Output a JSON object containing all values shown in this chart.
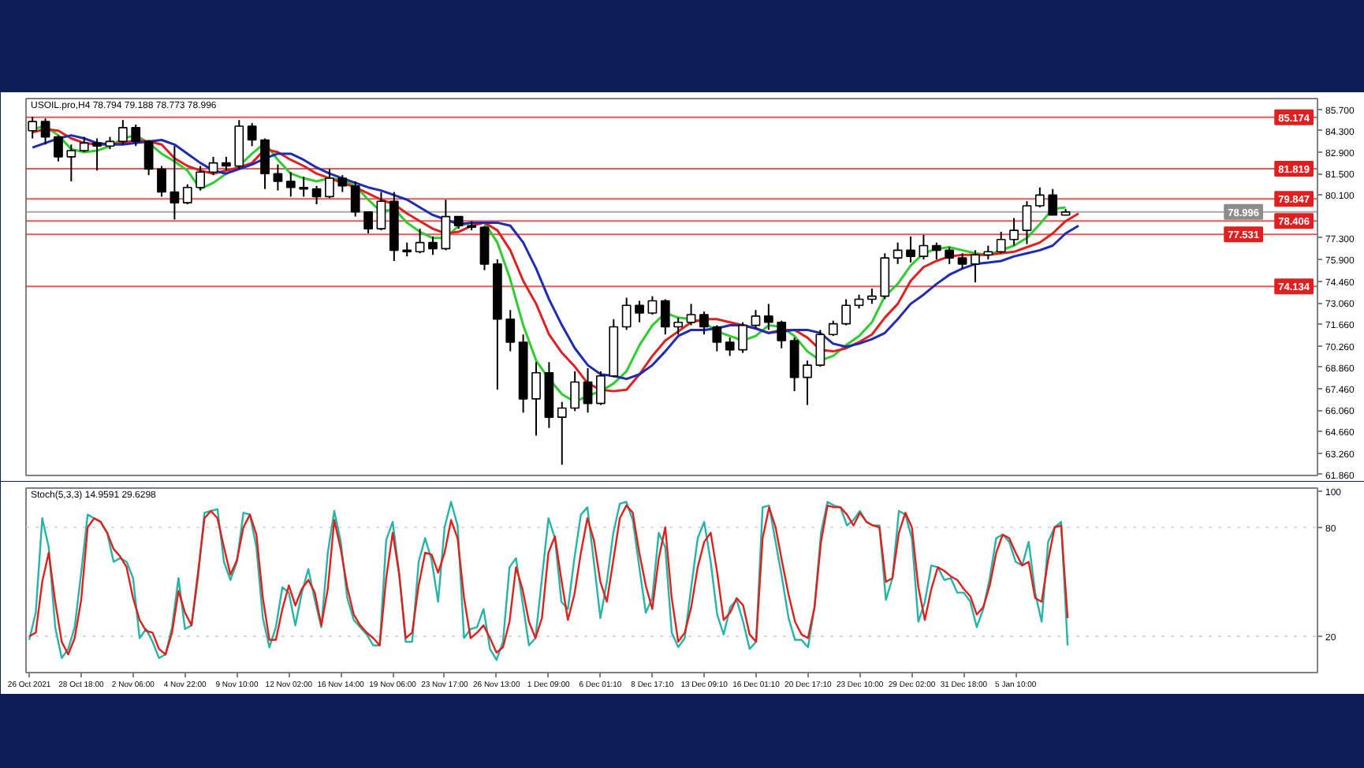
{
  "chart_data": [
    {
      "type": "candlestick",
      "title": "USOIL.pro,H4 78.794 79.188 78.773 78.996",
      "categories": [
        null,
        null,
        null,
        null,
        null,
        null,
        null,
        null,
        null,
        null,
        null,
        null,
        null,
        null,
        null,
        null,
        null,
        null,
        null,
        null,
        null,
        null,
        null,
        null,
        null,
        null,
        null,
        null,
        null,
        null,
        null,
        null,
        null,
        null,
        null,
        null,
        null,
        null,
        null,
        null,
        null,
        null,
        null,
        null,
        null,
        null,
        null,
        null,
        null,
        null,
        null,
        null,
        null,
        null,
        null,
        null,
        null,
        null,
        null,
        null,
        null,
        null,
        null,
        null,
        null,
        null,
        null,
        null,
        null,
        null,
        null,
        null,
        null,
        null,
        null,
        null,
        null,
        null,
        null,
        null,
        null,
        null,
        null,
        null,
        null,
        null,
        null,
        null,
        null,
        null,
        null,
        null,
        null,
        null,
        null,
        null,
        null,
        null,
        null,
        null
      ],
      "ohlc": [
        [
          84.3,
          85.2,
          83.8,
          84.9
        ],
        [
          84.9,
          85.1,
          83.4,
          83.9
        ],
        [
          83.9,
          84.0,
          82.3,
          82.6
        ],
        [
          82.6,
          83.4,
          81.0,
          83.0
        ],
        [
          83.0,
          83.9,
          82.9,
          83.5
        ],
        [
          83.5,
          83.8,
          81.7,
          83.3
        ],
        [
          83.3,
          83.9,
          83.1,
          83.6
        ],
        [
          83.6,
          85.0,
          83.4,
          84.5
        ],
        [
          84.5,
          84.7,
          83.3,
          83.6
        ],
        [
          83.6,
          83.7,
          81.4,
          81.8
        ],
        [
          81.8,
          82.0,
          80.0,
          80.3
        ],
        [
          80.3,
          83.3,
          78.5,
          79.6
        ],
        [
          79.6,
          80.8,
          79.5,
          80.6
        ],
        [
          80.6,
          82.0,
          80.4,
          81.6
        ],
        [
          81.6,
          82.6,
          81.4,
          82.2
        ],
        [
          82.2,
          82.6,
          81.7,
          82.0
        ],
        [
          82.0,
          85.0,
          81.8,
          84.6
        ],
        [
          84.6,
          84.8,
          83.3,
          83.7
        ],
        [
          83.7,
          83.8,
          80.5,
          81.5
        ],
        [
          81.5,
          82.1,
          80.4,
          81.0
        ],
        [
          81.0,
          81.6,
          80.0,
          80.6
        ],
        [
          80.6,
          81.3,
          80.0,
          80.5
        ],
        [
          80.5,
          80.7,
          79.5,
          80.0
        ],
        [
          80.0,
          81.8,
          79.9,
          81.2
        ],
        [
          81.2,
          81.4,
          80.3,
          80.7
        ],
        [
          80.7,
          81.0,
          78.7,
          79.0
        ],
        [
          79.0,
          79.0,
          77.6,
          77.9
        ],
        [
          77.9,
          80.3,
          77.8,
          79.7
        ],
        [
          79.7,
          80.3,
          75.8,
          76.5
        ],
        [
          76.5,
          77.0,
          76.1,
          76.4
        ],
        [
          76.4,
          77.9,
          76.3,
          77.0
        ],
        [
          77.0,
          77.4,
          76.2,
          76.6
        ],
        [
          76.6,
          79.8,
          76.5,
          78.7
        ],
        [
          78.7,
          78.7,
          77.9,
          78.1
        ],
        [
          78.1,
          78.4,
          77.8,
          78.0
        ],
        [
          78.0,
          78.1,
          75.2,
          75.6
        ],
        [
          75.6,
          75.9,
          67.4,
          72.0
        ],
        [
          72.0,
          72.6,
          69.9,
          70.5
        ],
        [
          70.5,
          71.0,
          65.9,
          66.8
        ],
        [
          66.8,
          69.2,
          64.4,
          68.5
        ],
        [
          68.5,
          69.2,
          64.9,
          65.6
        ],
        [
          65.6,
          66.6,
          62.5,
          66.2
        ],
        [
          66.2,
          68.6,
          66.0,
          67.9
        ],
        [
          67.9,
          68.8,
          65.9,
          66.5
        ],
        [
          66.5,
          68.6,
          66.4,
          68.3
        ],
        [
          68.3,
          72.0,
          68.2,
          71.5
        ],
        [
          71.5,
          73.4,
          71.3,
          72.9
        ],
        [
          72.9,
          73.2,
          71.8,
          72.4
        ],
        [
          72.4,
          73.5,
          72.3,
          73.2
        ],
        [
          73.2,
          73.3,
          71.0,
          71.5
        ],
        [
          71.5,
          72.1,
          71.0,
          71.8
        ],
        [
          71.8,
          73.0,
          71.6,
          72.3
        ],
        [
          72.3,
          72.5,
          71.0,
          71.5
        ],
        [
          71.5,
          71.6,
          69.9,
          70.5
        ],
        [
          70.5,
          70.8,
          69.6,
          70.0
        ],
        [
          70.0,
          71.8,
          69.8,
          71.6
        ],
        [
          71.6,
          72.6,
          71.4,
          72.2
        ],
        [
          72.2,
          73.0,
          71.3,
          71.8
        ],
        [
          71.8,
          71.9,
          70.1,
          70.6
        ],
        [
          70.6,
          70.8,
          67.3,
          68.2
        ],
        [
          68.2,
          69.3,
          66.4,
          69.0
        ],
        [
          69.0,
          71.3,
          68.9,
          71.0
        ],
        [
          71.0,
          71.9,
          70.9,
          71.7
        ],
        [
          71.7,
          73.3,
          71.6,
          72.9
        ],
        [
          72.9,
          73.6,
          72.7,
          73.3
        ],
        [
          73.3,
          74.0,
          73.0,
          73.5
        ],
        [
          73.5,
          76.3,
          73.3,
          76.0
        ],
        [
          76.0,
          77.0,
          75.6,
          76.5
        ],
        [
          76.5,
          77.4,
          75.7,
          76.1
        ],
        [
          76.1,
          77.5,
          75.9,
          76.8
        ],
        [
          76.8,
          77.0,
          75.9,
          76.5
        ],
        [
          76.5,
          76.7,
          75.6,
          76.0
        ],
        [
          76.0,
          76.3,
          75.3,
          75.6
        ],
        [
          75.6,
          76.5,
          74.4,
          76.2
        ],
        [
          76.2,
          76.8,
          75.9,
          76.4
        ],
        [
          76.4,
          77.7,
          76.3,
          77.2
        ],
        [
          77.2,
          78.6,
          76.8,
          77.8
        ],
        [
          77.8,
          79.7,
          76.9,
          79.4
        ],
        [
          79.4,
          80.6,
          79.3,
          80.1
        ],
        [
          80.1,
          80.5,
          78.8,
          78.8
        ],
        [
          78.794,
          79.188,
          78.773,
          78.996
        ],
        null,
        null,
        null,
        null,
        null,
        null,
        null,
        null,
        null,
        null,
        null,
        null,
        null,
        null,
        null,
        null,
        null,
        null,
        null
      ],
      "color": "#000000",
      "colors": [
        "#ffffff",
        "#000000",
        "#000000",
        "#ffffff",
        "#ffffff",
        "#000000",
        "#ffffff",
        "#ffffff",
        "#000000",
        "#000000",
        "#000000",
        "#000000",
        "#ffffff",
        "#ffffff",
        "#ffffff",
        "#000000",
        "#ffffff",
        "#000000",
        "#000000",
        "#000000",
        "#000000",
        "#000000",
        "#000000",
        "#ffffff",
        "#000000",
        "#000000",
        "#000000",
        "#ffffff",
        "#000000",
        "#000000",
        "#ffffff",
        "#000000",
        "#ffffff",
        "#000000",
        "#000000",
        "#000000",
        "#000000",
        "#000000",
        "#000000",
        "#ffffff",
        "#000000",
        "#ffffff",
        "#ffffff",
        "#000000",
        "#ffffff",
        "#ffffff",
        "#ffffff",
        "#000000",
        "#ffffff",
        "#000000",
        "#ffffff",
        "#ffffff",
        "#000000",
        "#000000",
        "#000000",
        "#ffffff",
        "#ffffff",
        "#000000",
        "#000000",
        "#000000",
        "#ffffff",
        "#ffffff",
        "#ffffff",
        "#ffffff",
        "#ffffff",
        "#ffffff",
        "#ffffff",
        "#ffffff",
        "#000000",
        "#ffffff",
        "#000000",
        "#000000",
        "#000000",
        "#ffffff",
        "#ffffff",
        "#ffffff",
        "#ffffff",
        "#ffffff",
        "#ffffff",
        "#000000",
        "#ffffff",
        null,
        null,
        null,
        null,
        null,
        null,
        null,
        null,
        null,
        null,
        null,
        null,
        null,
        null,
        null,
        null,
        null,
        null,
        null
      ],
      "series": [
        {
          "type": "line",
          "color": "#2ecc2e",
          "values": [
            84.4,
            84.6,
            84.0,
            83.1,
            82.9,
            83.0,
            83.3,
            83.8,
            84.0,
            83.5,
            82.8,
            82.3,
            81.7,
            80.5,
            80.9,
            81.5,
            82.0,
            82.8,
            83.5,
            82.4,
            81.5,
            81.2,
            81.0,
            81.2,
            81.1,
            80.7,
            79.8,
            79.0,
            79.2,
            78.3,
            77.7,
            77.3,
            77.3,
            78.1,
            78.3,
            78.3,
            77.0,
            74.6,
            71.6,
            69.3,
            68.1,
            67.1,
            66.6,
            67.0,
            67.3,
            67.8,
            68.6,
            70.3,
            71.6,
            72.4,
            72.1,
            72.0,
            71.8,
            71.2,
            70.9,
            70.6,
            70.9,
            71.6,
            71.5,
            70.9,
            69.9,
            69.3,
            69.6,
            70.3,
            70.9,
            71.8,
            73.5,
            74.3,
            75.5,
            76.3,
            76.6,
            76.7,
            76.5,
            76.3,
            76.2,
            76.5,
            76.8,
            77.3,
            78.2,
            79.2,
            79.3,
            null,
            null,
            null,
            null,
            null,
            null,
            null,
            null,
            null,
            null,
            null,
            null,
            null,
            null,
            null,
            null,
            null,
            null,
            null
          ]
        },
        {
          "type": "line",
          "color": "#e02020",
          "values": [
            84.2,
            84.4,
            84.3,
            83.8,
            83.5,
            83.4,
            83.4,
            83.5,
            83.7,
            83.6,
            83.4,
            82.5,
            82.0,
            81.7,
            81.5,
            81.7,
            81.9,
            82.2,
            83.1,
            82.9,
            82.4,
            82.0,
            81.5,
            81.2,
            80.9,
            80.6,
            80.2,
            79.8,
            79.5,
            78.9,
            78.4,
            77.9,
            77.6,
            77.7,
            78.1,
            78.3,
            77.8,
            76.5,
            74.5,
            73.0,
            71.0,
            69.8,
            68.9,
            67.8,
            67.4,
            67.3,
            67.4,
            68.4,
            69.6,
            70.6,
            71.2,
            71.8,
            72.0,
            72.0,
            71.8,
            71.6,
            71.4,
            71.1,
            71.3,
            71.3,
            70.8,
            70.0,
            69.9,
            70.1,
            70.5,
            71.0,
            72.1,
            73.0,
            74.5,
            75.4,
            75.8,
            76.1,
            76.2,
            76.2,
            76.2,
            76.3,
            76.4,
            76.7,
            77.0,
            77.6,
            78.4,
            78.9,
            null,
            null,
            null,
            null,
            null,
            null,
            null,
            null,
            null,
            null,
            null,
            null,
            null,
            null,
            null,
            null,
            null,
            null
          ]
        },
        {
          "type": "line",
          "color": "#1f2bb0",
          "values": [
            83.2,
            83.5,
            83.8,
            84.0,
            83.8,
            83.5,
            83.4,
            83.4,
            83.5,
            83.6,
            83.7,
            83.4,
            82.8,
            82.2,
            81.7,
            81.5,
            81.8,
            82.1,
            82.5,
            82.8,
            82.8,
            82.4,
            81.9,
            81.5,
            81.2,
            80.9,
            80.6,
            80.4,
            80.1,
            79.8,
            79.3,
            78.8,
            78.5,
            78.2,
            78.3,
            78.3,
            78.3,
            78.1,
            77.0,
            75.3,
            73.3,
            71.6,
            70.1,
            69.0,
            68.4,
            68.3,
            68.1,
            68.4,
            69.0,
            69.9,
            70.9,
            71.3,
            71.3,
            71.4,
            71.6,
            71.6,
            71.4,
            71.1,
            71.2,
            71.3,
            71.3,
            71.1,
            70.4,
            70.2,
            70.4,
            70.7,
            71.1,
            72.0,
            73.0,
            73.6,
            74.3,
            74.9,
            75.3,
            75.6,
            75.7,
            75.8,
            76.1,
            76.3,
            76.5,
            76.8,
            77.6,
            78.1,
            null,
            null,
            null,
            null,
            null,
            null,
            null,
            null,
            null,
            null,
            null,
            null,
            null,
            null,
            null,
            null,
            null,
            null
          ]
        }
      ],
      "ylim": [
        61.8,
        86.4
      ],
      "yticks": [
        {
          "value": 85.7,
          "label": "85.700"
        },
        {
          "value": 84.3,
          "label": "84.300"
        },
        {
          "value": 82.9,
          "label": "82.900"
        },
        {
          "value": 81.5,
          "label": "81.500"
        },
        {
          "value": 80.1,
          "label": "80.100"
        },
        {
          "value": 77.3,
          "label": "77.300"
        },
        {
          "value": 75.9,
          "label": "75.900"
        },
        {
          "value": 74.46,
          "label": "74.460"
        },
        {
          "value": 73.06,
          "label": "73.060"
        },
        {
          "value": 71.66,
          "label": "71.660"
        },
        {
          "value": 70.26,
          "label": "70.260"
        },
        {
          "value": 68.86,
          "label": "68.860"
        },
        {
          "value": 67.46,
          "label": "67.460"
        },
        {
          "value": 66.06,
          "label": "66.060"
        },
        {
          "value": 64.66,
          "label": "64.660"
        },
        {
          "value": 63.26,
          "label": "63.260"
        },
        {
          "value": 61.86,
          "label": "61.860"
        }
      ],
      "ref_lines": [
        {
          "axis": "y",
          "value": 85.174,
          "label": "85.174",
          "color": "#e02020"
        },
        {
          "axis": "y",
          "value": 81.819,
          "label": "81.819",
          "color": "#e02020"
        },
        {
          "axis": "y",
          "value": 79.847,
          "label": "79.847",
          "color": "#e02020"
        },
        {
          "axis": "y",
          "value": 78.996,
          "label": "78.996",
          "color": "#8c8c8c"
        },
        {
          "axis": "y",
          "value": 78.406,
          "label": "78.406",
          "color": "#e02020"
        },
        {
          "axis": "y",
          "value": 77.531,
          "label": "77.531",
          "color": "#e02020"
        },
        {
          "axis": "y",
          "value": 74.134,
          "label": "74.134",
          "color": "#e02020"
        }
      ],
      "tick_labels": "y"
    },
    {
      "type": "line",
      "title": "Stoch(5,3,3) 14.9591 29.6298",
      "categories": [
        "26 Oct 2021",
        null,
        null,
        null,
        null,
        null,
        null,
        null,
        "28 Oct 18:00",
        null,
        null,
        null,
        null,
        null,
        null,
        null,
        "2 Nov 06:00",
        null,
        null,
        null,
        null,
        null,
        null,
        null,
        "4 Nov 22:00",
        null,
        null,
        null,
        null,
        null,
        null,
        null,
        "9 Nov 10:00",
        null,
        null,
        null,
        null,
        null,
        null,
        null,
        "12 Nov 02:00",
        null,
        null,
        null,
        null,
        null,
        null,
        null,
        "16 Nov 14:00",
        null,
        null,
        null,
        null,
        null,
        null,
        null,
        "19 Nov 06:00",
        null,
        null,
        null,
        null,
        null,
        null,
        null,
        "23 Nov 17:00",
        null,
        null,
        null,
        null,
        null,
        null,
        null,
        "26 Nov 13:00",
        null,
        null,
        null,
        null,
        null,
        null,
        null,
        "1 Dec 09:00",
        null,
        null,
        null,
        null,
        null,
        null,
        null,
        "6 Dec 01:10",
        null,
        null,
        null,
        null,
        null,
        null,
        null,
        "8 Dec 17:10",
        null,
        null,
        null,
        null,
        null,
        null,
        null,
        "13 Dec 09:10",
        null,
        null,
        null,
        null,
        null,
        null,
        null,
        "16 Dec 01:10",
        null,
        null,
        null,
        null,
        null,
        null,
        null,
        "20 Dec 17:10",
        null,
        null,
        null,
        null,
        null,
        null,
        null,
        "23 Dec 10:00",
        null,
        null,
        null,
        null,
        null,
        null,
        null,
        "29 Dec 02:00",
        null,
        null,
        null,
        null,
        null,
        null,
        null,
        "31 Dec 18:00",
        null,
        null,
        null,
        null,
        null,
        null,
        null,
        "5 Jan 10:00",
        null,
        null,
        null,
        null,
        null,
        null,
        null,
        null,
        null,
        null,
        null,
        null,
        null,
        null,
        null,
        null,
        null,
        null,
        null,
        null,
        null,
        null,
        null,
        null,
        null,
        null,
        null,
        null,
        null,
        null,
        null,
        null,
        null,
        null,
        null,
        null,
        null,
        null,
        null,
        null,
        null,
        null,
        null,
        null,
        null,
        null
      ],
      "series": [
        {
          "color": "#26b3a8",
          "values": [
            18,
            33,
            85,
            69,
            25,
            8,
            13,
            25,
            55,
            87,
            85,
            83,
            77,
            61,
            63,
            61,
            52,
            19,
            24,
            17,
            8,
            10,
            25,
            52,
            24,
            26,
            52,
            88,
            89,
            90,
            61,
            51,
            61,
            88,
            87,
            69,
            30,
            14,
            25,
            47,
            44,
            26,
            44,
            57,
            40,
            25,
            66,
            89,
            72,
            41,
            29,
            25,
            21,
            15,
            15,
            73,
            83,
            55,
            17,
            17,
            61,
            74,
            62,
            39,
            80,
            94,
            81,
            19,
            24,
            25,
            35,
            13,
            7,
            17,
            58,
            63,
            39,
            15,
            19,
            52,
            85,
            74,
            39,
            35,
            63,
            87,
            91,
            61,
            30,
            50,
            77,
            93,
            94,
            84,
            58,
            33,
            41,
            77,
            69,
            22,
            14,
            19,
            47,
            74,
            83,
            61,
            32,
            21,
            36,
            40,
            28,
            13,
            17,
            91,
            92,
            72,
            52,
            30,
            18,
            18,
            14,
            36,
            77,
            94,
            92,
            91,
            81,
            84,
            89,
            83,
            81,
            81,
            40,
            52,
            89,
            87,
            74,
            28,
            39,
            59,
            58,
            51,
            52,
            44,
            44,
            39,
            25,
            35,
            52,
            74,
            76,
            72,
            61,
            59,
            72,
            44,
            28,
            72,
            80,
            83,
            15,
            null,
            null,
            null,
            null,
            null,
            null,
            null,
            null,
            null,
            null,
            null,
            null,
            null,
            null,
            null,
            null,
            null,
            null,
            null,
            null,
            null,
            null,
            null,
            null,
            null,
            null,
            null,
            null,
            null,
            null,
            null,
            null,
            null,
            null,
            null,
            null,
            null,
            null
          ]
        },
        {
          "color": "#e0201c",
          "values": [
            20,
            22,
            50,
            66,
            39,
            17,
            10,
            19,
            40,
            80,
            85,
            83,
            77,
            68,
            64,
            58,
            41,
            29,
            23,
            22,
            13,
            10,
            22,
            45,
            33,
            26,
            55,
            85,
            89,
            85,
            69,
            54,
            62,
            80,
            87,
            76,
            41,
            18,
            18,
            35,
            48,
            37,
            46,
            51,
            44,
            26,
            46,
            84,
            68,
            47,
            32,
            26,
            22,
            19,
            15,
            52,
            77,
            54,
            19,
            22,
            48,
            66,
            65,
            55,
            66,
            84,
            74,
            41,
            19,
            22,
            26,
            19,
            11,
            14,
            28,
            58,
            46,
            28,
            19,
            30,
            66,
            75,
            51,
            29,
            43,
            66,
            85,
            73,
            50,
            39,
            62,
            85,
            92,
            88,
            66,
            48,
            35,
            63,
            80,
            41,
            17,
            22,
            36,
            58,
            72,
            77,
            55,
            29,
            33,
            41,
            37,
            21,
            17,
            74,
            91,
            80,
            61,
            43,
            28,
            21,
            19,
            36,
            72,
            92,
            91,
            91,
            87,
            81,
            88,
            83,
            81,
            80,
            50,
            52,
            77,
            88,
            80,
            47,
            29,
            46,
            58,
            56,
            53,
            51,
            46,
            42,
            32,
            36,
            48,
            66,
            76,
            74,
            66,
            59,
            61,
            41,
            39,
            62,
            80,
            81,
            30,
            null,
            null,
            null,
            null,
            null,
            null,
            null,
            null,
            null,
            null,
            null,
            null,
            null,
            null,
            null,
            null,
            null,
            null,
            null,
            null,
            null,
            null,
            null,
            null,
            null,
            null,
            null,
            null,
            null,
            null,
            null,
            null,
            null,
            null,
            null,
            null,
            null,
            null
          ]
        }
      ],
      "ylim": [
        0,
        101.6
      ],
      "yticks": [
        100,
        80,
        20
      ],
      "ref_lines": [
        {
          "axis": "y",
          "value": 80,
          "color": "#c8c8c8",
          "line_style": "dotted"
        },
        {
          "axis": "y",
          "value": 20,
          "color": "#c8c8c8",
          "line_style": "dotted"
        }
      ]
    }
  ]
}
